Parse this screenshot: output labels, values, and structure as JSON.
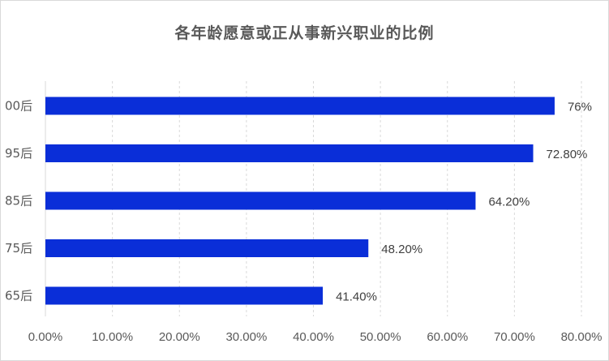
{
  "chart_data": {
    "type": "bar",
    "orientation": "horizontal",
    "title": "各年龄愿意或正从事新兴职业的比例",
    "categories": [
      "00后",
      "95后",
      "85后",
      "75后",
      "65后"
    ],
    "values": [
      0.76,
      0.728,
      0.642,
      0.482,
      0.414
    ],
    "data_labels": [
      "76%",
      "72.80%",
      "64.20%",
      "48.20%",
      "41.40%"
    ],
    "x_ticks": [
      0,
      0.1,
      0.2,
      0.3,
      0.4,
      0.5,
      0.6,
      0.7,
      0.8
    ],
    "x_tick_labels": [
      "0.00%",
      "10.00%",
      "20.00%",
      "30.00%",
      "40.00%",
      "50.00%",
      "60.00%",
      "70.00%",
      "80.00%"
    ],
    "xlim": [
      0,
      0.8
    ],
    "grid": "vertical dashed",
    "legend": "none",
    "bar_color": "#0a2ed8",
    "grid_color": "#d9d9d9"
  }
}
